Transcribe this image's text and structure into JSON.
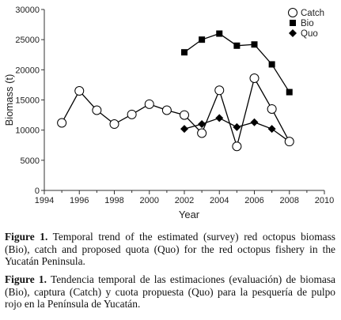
{
  "chart_data": {
    "type": "line",
    "xlabel": "Year",
    "ylabel": "Biomass (t)",
    "xlim": [
      1994,
      2010
    ],
    "ylim": [
      0,
      30000
    ],
    "x_ticks": [
      1994,
      1996,
      1998,
      2000,
      2002,
      2004,
      2006,
      2008,
      2010
    ],
    "y_ticks": [
      0,
      5000,
      10000,
      15000,
      20000,
      25000,
      30000
    ],
    "grid": false,
    "legend_position": "top-right",
    "series": [
      {
        "name": "Catch",
        "marker": "open-circle",
        "color": "#000000",
        "x": [
          1995,
          1996,
          1997,
          1998,
          1999,
          2000,
          2001,
          2002,
          2003,
          2004,
          2005,
          2006,
          2007,
          2008
        ],
        "values": [
          11200,
          16500,
          13300,
          11000,
          12600,
          14300,
          13300,
          12500,
          9500,
          16600,
          7300,
          18600,
          13500,
          8100
        ]
      },
      {
        "name": "Bio",
        "marker": "filled-square",
        "color": "#000000",
        "x": [
          2002,
          2003,
          2004,
          2005,
          2006,
          2007,
          2008
        ],
        "values": [
          22900,
          25000,
          26000,
          24000,
          24200,
          20900,
          16300
        ]
      },
      {
        "name": "Quo",
        "marker": "filled-diamond",
        "color": "#000000",
        "x": [
          2002,
          2003,
          2004,
          2005,
          2006,
          2007,
          2008
        ],
        "values": [
          10200,
          11000,
          12000,
          10500,
          11300,
          10200,
          8100
        ]
      }
    ]
  },
  "caption": {
    "en_label": "Figure 1.",
    "en_text": " Temporal trend of the estimated (survey) red octopus biomass (Bio), catch and proposed quota (Quo) for the red octopus fishery in the Yucatán Peninsula.",
    "es_label": "Figure 1.",
    "es_text": " Tendencia temporal de las estimaciones (evaluación) de biomasa (Bio), captura (Catch) y cuota propuesta (Quo) para la pesquería de pulpo rojo en la Península de Yucatán."
  }
}
